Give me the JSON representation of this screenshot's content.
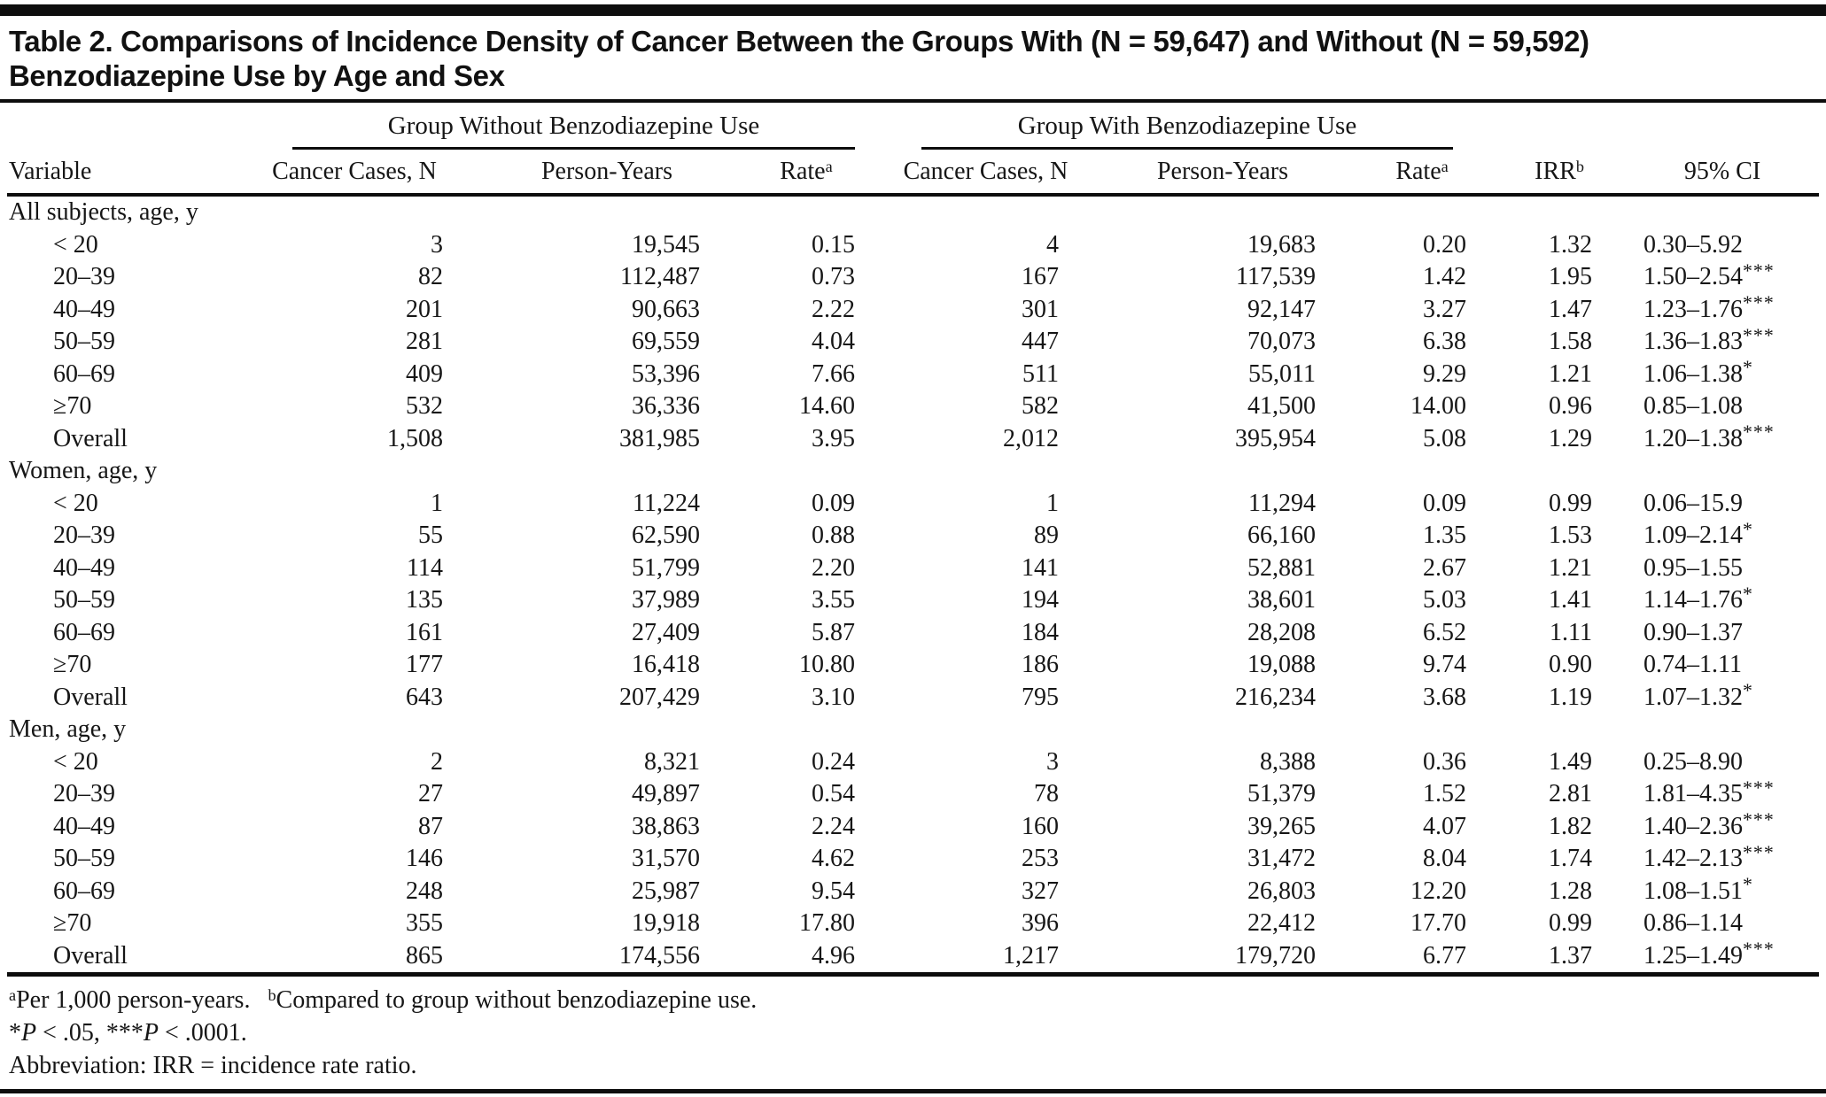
{
  "title": {
    "line1": "Table 2. Comparisons of Incidence Density of Cancer Between the Groups With (N = 59,647) and Without (N = 59,592)",
    "line2": "Benzodiazepine Use by Age and Sex"
  },
  "header": {
    "variable": "Variable",
    "group_without": "Group Without Benzodiazepine Use",
    "group_with": "Group With Benzodiazepine Use",
    "cancer_cases": "Cancer Cases, N",
    "person_years": "Person-Years",
    "rate": "Rate",
    "rate_sup": "a",
    "irr": "IRR",
    "irr_sup": "b",
    "ci": "95% CI"
  },
  "sections": [
    {
      "label": "All subjects, age, y",
      "rows": [
        {
          "variable": "< 20",
          "wo_cases": "3",
          "wo_py": "19,545",
          "wo_rate": "0.15",
          "w_cases": "4",
          "w_py": "19,683",
          "w_rate": "0.20",
          "irr": "1.32",
          "ci": "0.30–5.92",
          "stars": ""
        },
        {
          "variable": "20–39",
          "wo_cases": "82",
          "wo_py": "112,487",
          "wo_rate": "0.73",
          "w_cases": "167",
          "w_py": "117,539",
          "w_rate": "1.42",
          "irr": "1.95",
          "ci": "1.50–2.54",
          "stars": "***"
        },
        {
          "variable": "40–49",
          "wo_cases": "201",
          "wo_py": "90,663",
          "wo_rate": "2.22",
          "w_cases": "301",
          "w_py": "92,147",
          "w_rate": "3.27",
          "irr": "1.47",
          "ci": "1.23–1.76",
          "stars": "***"
        },
        {
          "variable": "50–59",
          "wo_cases": "281",
          "wo_py": "69,559",
          "wo_rate": "4.04",
          "w_cases": "447",
          "w_py": "70,073",
          "w_rate": "6.38",
          "irr": "1.58",
          "ci": "1.36–1.83",
          "stars": "***"
        },
        {
          "variable": "60–69",
          "wo_cases": "409",
          "wo_py": "53,396",
          "wo_rate": "7.66",
          "w_cases": "511",
          "w_py": "55,011",
          "w_rate": "9.29",
          "irr": "1.21",
          "ci": "1.06–1.38",
          "stars": "*"
        },
        {
          "variable": "≥70",
          "wo_cases": "532",
          "wo_py": "36,336",
          "wo_rate": "14.60",
          "w_cases": "582",
          "w_py": "41,500",
          "w_rate": "14.00",
          "irr": "0.96",
          "ci": "0.85–1.08",
          "stars": ""
        },
        {
          "variable": "Overall",
          "wo_cases": "1,508",
          "wo_py": "381,985",
          "wo_rate": "3.95",
          "w_cases": "2,012",
          "w_py": "395,954",
          "w_rate": "5.08",
          "irr": "1.29",
          "ci": "1.20–1.38",
          "stars": "***"
        }
      ]
    },
    {
      "label": "Women, age, y",
      "rows": [
        {
          "variable": "< 20",
          "wo_cases": "1",
          "wo_py": "11,224",
          "wo_rate": "0.09",
          "w_cases": "1",
          "w_py": "11,294",
          "w_rate": "0.09",
          "irr": "0.99",
          "ci": "0.06–15.9",
          "stars": ""
        },
        {
          "variable": "20–39",
          "wo_cases": "55",
          "wo_py": "62,590",
          "wo_rate": "0.88",
          "w_cases": "89",
          "w_py": "66,160",
          "w_rate": "1.35",
          "irr": "1.53",
          "ci": "1.09–2.14",
          "stars": "*"
        },
        {
          "variable": "40–49",
          "wo_cases": "114",
          "wo_py": "51,799",
          "wo_rate": "2.20",
          "w_cases": "141",
          "w_py": "52,881",
          "w_rate": "2.67",
          "irr": "1.21",
          "ci": "0.95–1.55",
          "stars": ""
        },
        {
          "variable": "50–59",
          "wo_cases": "135",
          "wo_py": "37,989",
          "wo_rate": "3.55",
          "w_cases": "194",
          "w_py": "38,601",
          "w_rate": "5.03",
          "irr": "1.41",
          "ci": "1.14–1.76",
          "stars": "*"
        },
        {
          "variable": "60–69",
          "wo_cases": "161",
          "wo_py": "27,409",
          "wo_rate": "5.87",
          "w_cases": "184",
          "w_py": "28,208",
          "w_rate": "6.52",
          "irr": "1.11",
          "ci": "0.90–1.37",
          "stars": ""
        },
        {
          "variable": "≥70",
          "wo_cases": "177",
          "wo_py": "16,418",
          "wo_rate": "10.80",
          "w_cases": "186",
          "w_py": "19,088",
          "w_rate": "9.74",
          "irr": "0.90",
          "ci": "0.74–1.11",
          "stars": ""
        },
        {
          "variable": "Overall",
          "wo_cases": "643",
          "wo_py": "207,429",
          "wo_rate": "3.10",
          "w_cases": "795",
          "w_py": "216,234",
          "w_rate": "3.68",
          "irr": "1.19",
          "ci": "1.07–1.32",
          "stars": "*"
        }
      ]
    },
    {
      "label": "Men, age, y",
      "rows": [
        {
          "variable": "< 20",
          "wo_cases": "2",
          "wo_py": "8,321",
          "wo_rate": "0.24",
          "w_cases": "3",
          "w_py": "8,388",
          "w_rate": "0.36",
          "irr": "1.49",
          "ci": "0.25–8.90",
          "stars": ""
        },
        {
          "variable": "20–39",
          "wo_cases": "27",
          "wo_py": "49,897",
          "wo_rate": "0.54",
          "w_cases": "78",
          "w_py": "51,379",
          "w_rate": "1.52",
          "irr": "2.81",
          "ci": "1.81–4.35",
          "stars": "***"
        },
        {
          "variable": "40–49",
          "wo_cases": "87",
          "wo_py": "38,863",
          "wo_rate": "2.24",
          "w_cases": "160",
          "w_py": "39,265",
          "w_rate": "4.07",
          "irr": "1.82",
          "ci": "1.40–2.36",
          "stars": "***"
        },
        {
          "variable": "50–59",
          "wo_cases": "146",
          "wo_py": "31,570",
          "wo_rate": "4.62",
          "w_cases": "253",
          "w_py": "31,472",
          "w_rate": "8.04",
          "irr": "1.74",
          "ci": "1.42–2.13",
          "stars": "***"
        },
        {
          "variable": "60–69",
          "wo_cases": "248",
          "wo_py": "25,987",
          "wo_rate": "9.54",
          "w_cases": "327",
          "w_py": "26,803",
          "w_rate": "12.20",
          "irr": "1.28",
          "ci": "1.08–1.51",
          "stars": "*"
        },
        {
          "variable": "≥70",
          "wo_cases": "355",
          "wo_py": "19,918",
          "wo_rate": "17.80",
          "w_cases": "396",
          "w_py": "22,412",
          "w_rate": "17.70",
          "irr": "0.99",
          "ci": "0.86–1.14",
          "stars": ""
        },
        {
          "variable": "Overall",
          "wo_cases": "865",
          "wo_py": "174,556",
          "wo_rate": "4.96",
          "w_cases": "1,217",
          "w_py": "179,720",
          "w_rate": "6.77",
          "irr": "1.37",
          "ci": "1.25–1.49",
          "stars": "***"
        }
      ]
    }
  ],
  "footnotes": {
    "a_sup": "a",
    "a_text": "Per 1,000 person-years.",
    "b_sup": "b",
    "b_text": "Compared to group without benzodiazepine use.",
    "sig_star1": "*",
    "sig_p1": "P",
    "sig_mid": " < .05, ",
    "sig_star2": "***",
    "sig_p2": "P",
    "sig_end": " < .0001.",
    "abbreviation": "Abbreviation: IRR = incidence rate ratio."
  }
}
